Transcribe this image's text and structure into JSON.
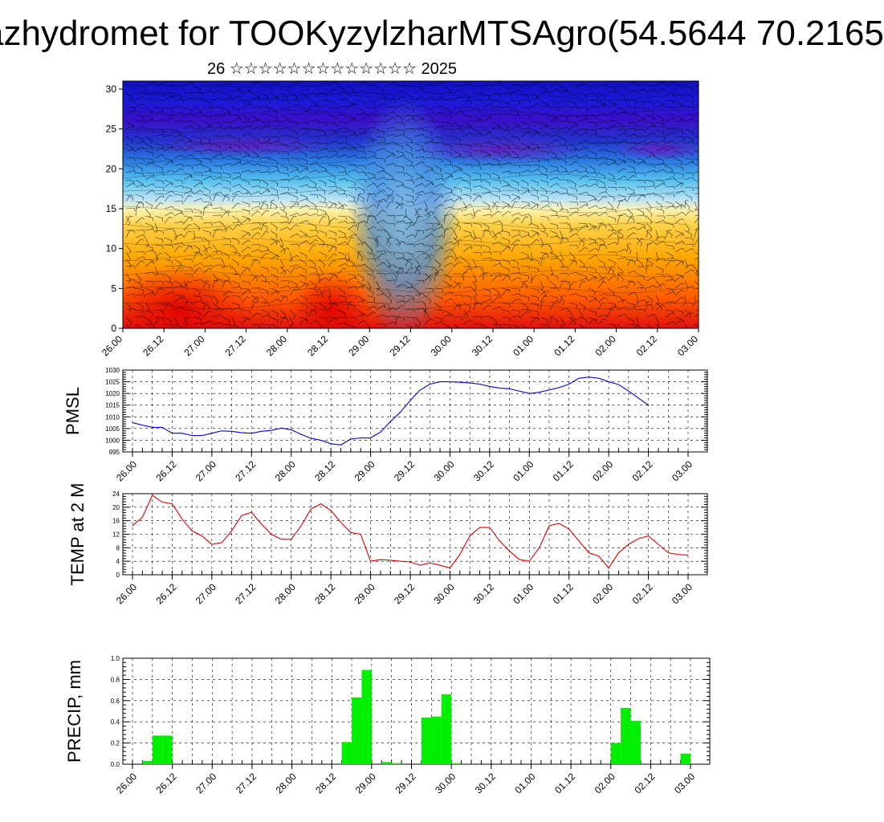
{
  "header": {
    "title": "azhydromet for TOOKyzylzharMTSAgro(54.5644 70.2165",
    "subtitle": "26 ☆☆☆☆☆☆☆☆☆☆☆☆☆ 2025"
  },
  "colors": {
    "pmsl_line": "#0000dd",
    "temp_line": "#dd0000",
    "precip_bar": "#00ee00"
  },
  "chart_data": [
    {
      "type": "heatmap",
      "name_hint": "vertical-section",
      "categories": [
        "26.00",
        "26.12",
        "27.00",
        "27.12",
        "28.00",
        "28.12",
        "29.00",
        "29.12",
        "30.00",
        "30.12",
        "01.00",
        "01.12",
        "02.00",
        "02.12",
        "03.00"
      ],
      "yticks": [
        0,
        5,
        10,
        15,
        20,
        25,
        30
      ],
      "ylim": [
        0,
        31
      ]
    },
    {
      "type": "line",
      "ylabel": "PMSL",
      "categories": [
        "26.00",
        "26.12",
        "27.00",
        "27.12",
        "28.00",
        "28.12",
        "29.00",
        "29.12",
        "30.00",
        "30.12",
        "01.00",
        "01.12",
        "02.00",
        "02.12",
        "03.00"
      ],
      "ylim": [
        995,
        1030
      ],
      "yticks": [
        995,
        1000,
        1005,
        1010,
        1015,
        1020,
        1025,
        1030
      ],
      "x": [
        0,
        0.25,
        0.5,
        0.75,
        1,
        1.25,
        1.5,
        1.75,
        2,
        2.25,
        2.5,
        2.75,
        3,
        3.25,
        3.5,
        3.75,
        4,
        4.25,
        4.5,
        4.75,
        5,
        5.25,
        5.5,
        5.75,
        6,
        6.25,
        6.5,
        6.75,
        7,
        7.25,
        7.5,
        7.75,
        8,
        8.25,
        8.5,
        8.75,
        9,
        9.25,
        9.5,
        9.75,
        10,
        10.25,
        10.5,
        10.75,
        11,
        11.25,
        11.5,
        11.75,
        12,
        12.25,
        12.5,
        12.75,
        13,
        13.25,
        13.5,
        13.75,
        14
      ],
      "values": [
        1007.5,
        1006.5,
        1005.5,
        1005.5,
        1003,
        1003,
        1002,
        1002,
        1003,
        1004,
        1003.8,
        1003.2,
        1003,
        1003.8,
        1004.2,
        1005.2,
        1004.5,
        1002.5,
        1000.8,
        1000,
        998.5,
        998,
        1000.5,
        1001,
        1001,
        1003.5,
        1008,
        1012,
        1017,
        1021.5,
        1024,
        1025,
        1025,
        1024.8,
        1024.5,
        1024,
        1023,
        1022.3,
        1022,
        1021,
        1020,
        1020.5,
        1021.5,
        1022.5,
        1024,
        1026.5,
        1027,
        1026.5,
        1025,
        1023.8,
        1021,
        1018,
        1015,
        null,
        null,
        null,
        null
      ]
    },
    {
      "type": "line",
      "ylabel": "TEMP at 2 M",
      "categories": [
        "26.00",
        "26.12",
        "27.00",
        "27.12",
        "28.00",
        "28.12",
        "29.00",
        "29.12",
        "30.00",
        "30.12",
        "01.00",
        "01.12",
        "02.00",
        "02.12",
        "03.00"
      ],
      "ylim": [
        0,
        24
      ],
      "yticks": [
        0,
        4,
        8,
        12,
        16,
        20,
        24
      ],
      "x": [
        0,
        0.25,
        0.5,
        0.75,
        1,
        1.25,
        1.5,
        1.75,
        2,
        2.25,
        2.5,
        2.75,
        3,
        3.25,
        3.5,
        3.75,
        4,
        4.25,
        4.5,
        4.75,
        5,
        5.25,
        5.5,
        5.75,
        6,
        6.25,
        6.5,
        6.75,
        7,
        7.25,
        7.5,
        7.75,
        8,
        8.25,
        8.5,
        8.75,
        9,
        9.25,
        9.5,
        9.75,
        10,
        10.25,
        10.5,
        10.75,
        11,
        11.25,
        11.5,
        11.75,
        12,
        12.25,
        12.5,
        12.75,
        13,
        13.25,
        13.5,
        13.75,
        14
      ],
      "values": [
        14.5,
        17,
        23.5,
        21.5,
        21,
        16.5,
        13,
        11.5,
        9,
        9.5,
        13,
        17.5,
        18.5,
        15,
        12,
        10.5,
        10.5,
        14.5,
        19.5,
        21,
        19,
        15.5,
        12.5,
        12,
        4,
        4.5,
        4.3,
        4,
        3.8,
        2.8,
        3.5,
        2.8,
        2,
        6,
        11.5,
        14,
        14,
        10,
        7,
        4.5,
        4,
        8,
        14.5,
        15.2,
        13.5,
        10,
        6.5,
        5.5,
        2,
        6.5,
        9,
        10.7,
        11.5,
        9,
        6.5,
        6,
        5.8
      ]
    },
    {
      "type": "bar",
      "ylabel": "PRECIP, mm",
      "categories": [
        "26.00",
        "26.12",
        "27.00",
        "27.12",
        "28.00",
        "28.12",
        "29.00",
        "29.12",
        "30.00",
        "30.12",
        "01.00",
        "01.12",
        "02.00",
        "02.12",
        "03.00"
      ],
      "ylim": [
        0,
        1.0
      ],
      "yticks": [
        0.0,
        0.2,
        0.4,
        0.6,
        0.8,
        1.0
      ],
      "x": [
        0.125,
        0.375,
        0.625,
        0.875,
        1.125,
        1.375,
        5.125,
        5.375,
        5.625,
        5.875,
        6.375,
        6.625,
        7.375,
        7.625,
        7.875,
        8.125,
        8.375,
        12.125,
        12.375,
        12.625,
        13.875
      ],
      "values": [
        0.0,
        0.03,
        0.27,
        0.27,
        0.0,
        0.0,
        0.0,
        0.21,
        0.63,
        0.89,
        0.02,
        0.01,
        0.44,
        0.45,
        0.66,
        0.01,
        0.0,
        0.2,
        0.53,
        0.41,
        0.1
      ]
    }
  ]
}
